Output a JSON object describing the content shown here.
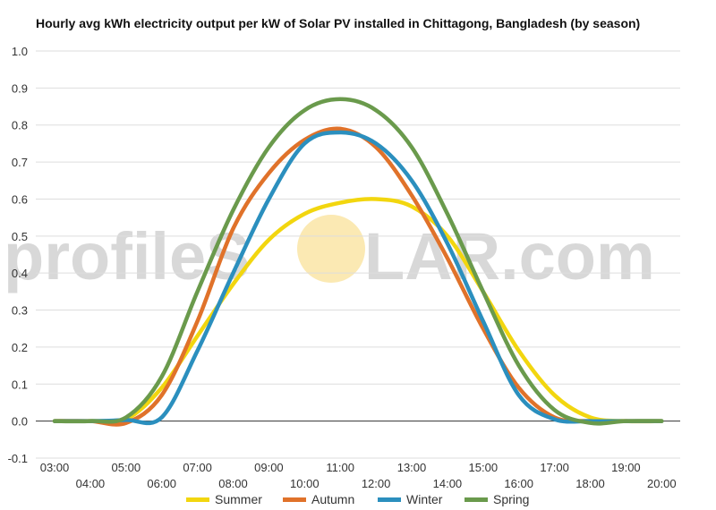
{
  "title": "Hourly avg kWh electricity output per kW of Solar PV installed in Chittagong, Bangladesh (by season)",
  "watermark": {
    "left": "profileS",
    "right": "LAR.com"
  },
  "colors": {
    "Summer": "#f2d60f",
    "Autumn": "#e0722a",
    "Winter": "#2b8fbe",
    "Spring": "#6a9a4c",
    "grid": "#dddddd",
    "zero": "#333333",
    "sun": "#fbe9b3"
  },
  "chart_data": {
    "type": "line",
    "title": "Hourly avg kWh electricity output per kW of Solar PV installed in Chittagong, Bangladesh (by season)",
    "xlabel": "",
    "ylabel": "",
    "ylim": [
      -0.1,
      1.0
    ],
    "yticks": [
      "1.0",
      "0.9",
      "0.8",
      "0.7",
      "0.6",
      "0.5",
      "0.4",
      "0.3",
      "0.2",
      "0.1",
      "0.0",
      "-0.1"
    ],
    "x": [
      "03:00",
      "04:00",
      "05:00",
      "06:00",
      "07:00",
      "08:00",
      "09:00",
      "10:00",
      "11:00",
      "12:00",
      "13:00",
      "14:00",
      "15:00",
      "16:00",
      "17:00",
      "18:00",
      "19:00",
      "20:00"
    ],
    "grid": true,
    "legend_position": "bottom",
    "series": [
      {
        "name": "Summer",
        "values": [
          0,
          0,
          0.005,
          0.09,
          0.23,
          0.37,
          0.49,
          0.56,
          0.59,
          0.6,
          0.58,
          0.5,
          0.35,
          0.19,
          0.07,
          0.01,
          0,
          0
        ]
      },
      {
        "name": "Autumn",
        "values": [
          0,
          0,
          -0.005,
          0.07,
          0.27,
          0.52,
          0.67,
          0.76,
          0.79,
          0.74,
          0.61,
          0.44,
          0.25,
          0.09,
          0.01,
          0,
          0,
          0
        ]
      },
      {
        "name": "Winter",
        "values": [
          0,
          0,
          0.003,
          0.01,
          0.19,
          0.4,
          0.6,
          0.75,
          0.78,
          0.75,
          0.65,
          0.48,
          0.27,
          0.07,
          0.005,
          0,
          0,
          0
        ]
      },
      {
        "name": "Spring",
        "values": [
          0,
          0,
          0.01,
          0.12,
          0.35,
          0.57,
          0.74,
          0.84,
          0.87,
          0.84,
          0.74,
          0.56,
          0.35,
          0.15,
          0.03,
          -0.005,
          0,
          0
        ]
      }
    ]
  }
}
